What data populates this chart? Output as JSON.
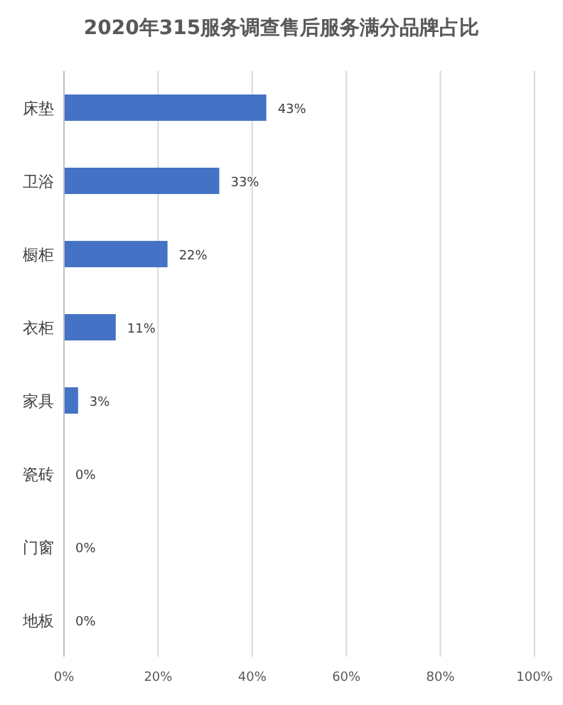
{
  "chart_data": {
    "type": "bar",
    "orientation": "horizontal",
    "title": "2020年315服务调查售后服务满分品牌占比",
    "categories": [
      "床垫",
      "卫浴",
      "橱柜",
      "衣柜",
      "家具",
      "瓷砖",
      "门窗",
      "地板"
    ],
    "values": [
      43,
      33,
      22,
      11,
      3,
      0,
      0,
      0
    ],
    "value_labels": [
      "43%",
      "33%",
      "22%",
      "11%",
      "3%",
      "0%",
      "0%",
      "0%"
    ],
    "color": "#4472c4",
    "xlim": [
      0,
      100
    ],
    "xticks": [
      {
        "value": 0,
        "label": "0%"
      },
      {
        "value": 20,
        "label": "20%"
      },
      {
        "value": 40,
        "label": "40%"
      },
      {
        "value": 60,
        "label": "60%"
      },
      {
        "value": 80,
        "label": "80%"
      },
      {
        "value": 100,
        "label": "100%"
      }
    ],
    "grid": "x"
  }
}
